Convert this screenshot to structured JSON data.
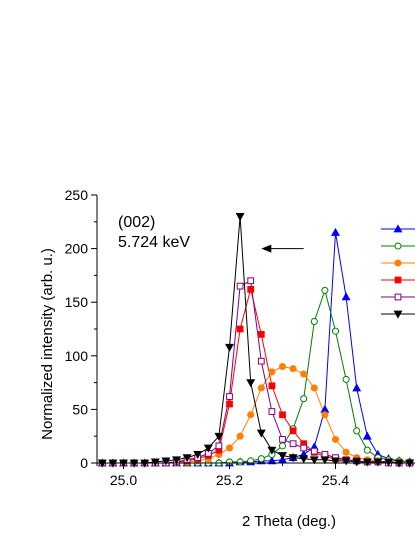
{
  "chart_data": {
    "type": "line",
    "title": "",
    "xlabel": "2 Theta (deg.)",
    "ylabel": "Normalized intensity (arb. u.)",
    "xlim": [
      24.95,
      25.55
    ],
    "ylim": [
      0,
      250
    ],
    "x_ticks": [
      25.0,
      25.2,
      25.4
    ],
    "x_tick_labels": [
      "25.0",
      "25.2",
      "25.4"
    ],
    "y_ticks": [
      0,
      50,
      100,
      150,
      200,
      250
    ],
    "y_tick_labels": [
      "0",
      "50",
      "100",
      "150",
      "200",
      "250"
    ],
    "grid": false,
    "legend_placement": "top-right (labels cut off)",
    "annotations": [
      "(002)",
      "5.724 keV"
    ],
    "arrow": {
      "from_x": 25.34,
      "to_x": 25.26,
      "y": 200,
      "direction": "left"
    },
    "x": [
      24.96,
      24.98,
      25.0,
      25.02,
      25.04,
      25.06,
      25.08,
      25.1,
      25.12,
      25.14,
      25.16,
      25.18,
      25.2,
      25.22,
      25.24,
      25.26,
      25.28,
      25.3,
      25.32,
      25.34,
      25.36,
      25.38,
      25.4,
      25.42,
      25.44,
      25.46,
      25.48,
      25.5,
      25.52,
      25.54
    ],
    "series": [
      {
        "color": "#0000ff",
        "marker": "triangle-up",
        "filled": true,
        "values": [
          0,
          0,
          0,
          0,
          0,
          0,
          0,
          0,
          0,
          0,
          0,
          0,
          0,
          1,
          1,
          2,
          2,
          3,
          5,
          8,
          15,
          50,
          215,
          155,
          70,
          25,
          8,
          4,
          2,
          1
        ]
      },
      {
        "color": "#008000",
        "marker": "circle",
        "filled": false,
        "values": [
          0,
          0,
          0,
          0,
          0,
          0,
          0,
          0,
          0,
          0,
          0,
          0,
          1,
          1,
          2,
          4,
          8,
          16,
          32,
          60,
          132,
          161,
          123,
          78,
          30,
          12,
          5,
          3,
          2,
          1
        ]
      },
      {
        "color": "#ff8000",
        "marker": "circle",
        "filled": true,
        "values": [
          0,
          0,
          0,
          0,
          0,
          0,
          0,
          0,
          1,
          2,
          4,
          8,
          14,
          25,
          45,
          70,
          85,
          90,
          88,
          83,
          70,
          45,
          22,
          10,
          5,
          3,
          2,
          1,
          1,
          0
        ]
      },
      {
        "color": "#ff0000",
        "marker": "square",
        "filled": true,
        "values": [
          0,
          0,
          0,
          0,
          0,
          0,
          0,
          1,
          2,
          4,
          7,
          12,
          55,
          125,
          162,
          120,
          72,
          45,
          30,
          18,
          10,
          6,
          4,
          3,
          2,
          1,
          1,
          1,
          0,
          0
        ]
      },
      {
        "color": "#800080",
        "marker": "square",
        "filled": false,
        "values": [
          0,
          0,
          0,
          0,
          0,
          0,
          0,
          1,
          3,
          5,
          9,
          16,
          62,
          165,
          170,
          95,
          48,
          22,
          18,
          14,
          11,
          8,
          5,
          3,
          2,
          1,
          1,
          0,
          0,
          0
        ]
      },
      {
        "color": "#000000",
        "marker": "triangle-down",
        "filled": true,
        "values": [
          0,
          0,
          0,
          0,
          0,
          1,
          2,
          3,
          5,
          8,
          14,
          25,
          108,
          230,
          75,
          28,
          12,
          7,
          5,
          4,
          3,
          3,
          2,
          2,
          1,
          1,
          1,
          1,
          0,
          0
        ]
      }
    ]
  }
}
